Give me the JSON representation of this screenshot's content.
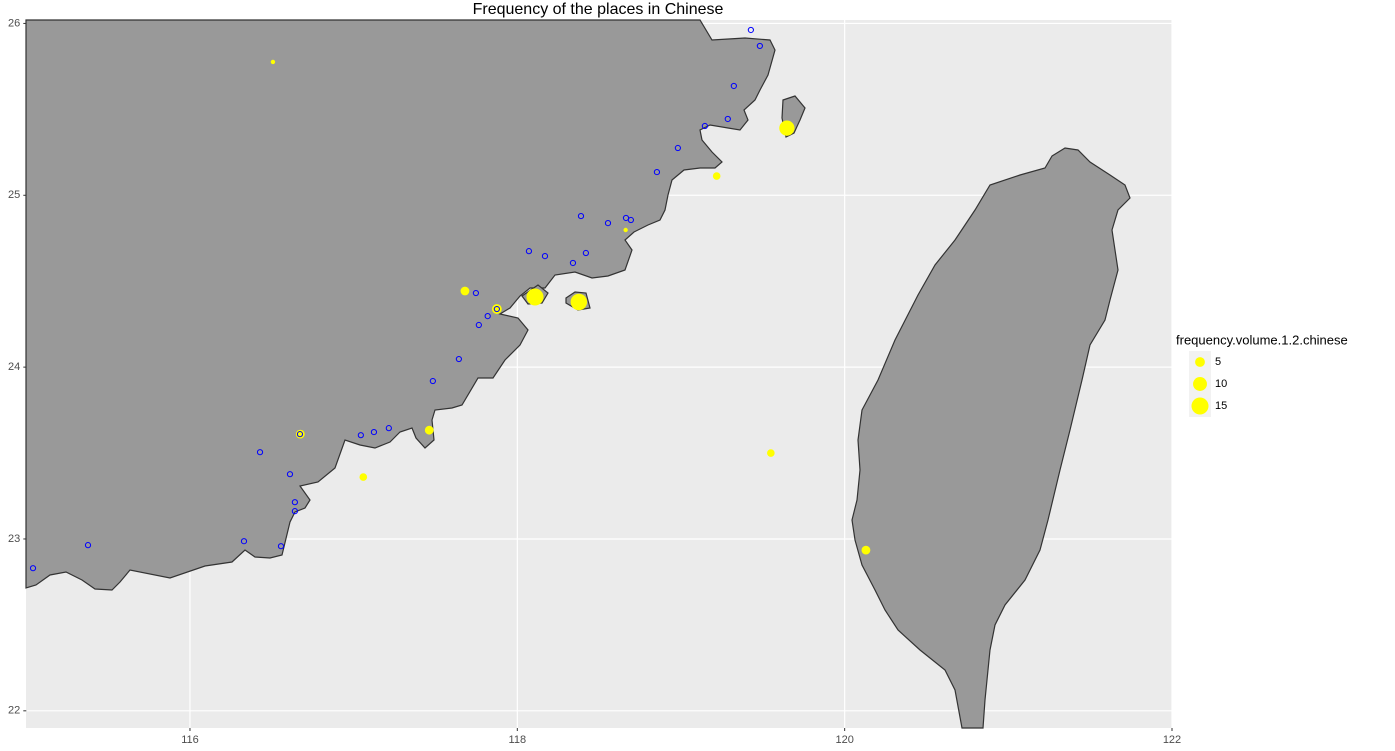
{
  "chart_data": {
    "type": "scatter",
    "title": "Frequency of the places in Chinese",
    "xlim": [
      115,
      122
    ],
    "ylim": [
      21.9,
      26.02
    ],
    "xticks": [
      116,
      118,
      120,
      122
    ],
    "yticks": [
      22,
      23,
      24,
      25,
      26
    ],
    "grid": true,
    "size_legend": {
      "title": "frequency.volume.1.2.chinese",
      "values": [
        5,
        10,
        15
      ],
      "color": "#ffff00"
    },
    "series": [
      {
        "color": "#ffff00",
        "x": [
          116.507,
          119.647,
          119.218,
          118.662,
          117.68,
          118.108,
          118.376,
          117.875,
          117.462,
          116.674,
          117.059,
          119.549,
          120.13
        ],
        "y": [
          25.776,
          25.391,
          25.112,
          24.798,
          24.443,
          24.408,
          24.379,
          24.338,
          23.633,
          23.61,
          23.36,
          23.5,
          22.935
        ],
        "size": [
          1,
          12,
          3,
          1,
          4,
          15,
          14,
          5,
          4,
          4,
          3,
          3,
          4
        ]
      },
      {
        "color": "#0000ff",
        "x": [
          119.427,
          119.482,
          119.323,
          119.286,
          119.146,
          118.981,
          118.853,
          118.389,
          118.554,
          118.664,
          118.694,
          118.071,
          118.169,
          118.419,
          118.34,
          117.747,
          117.819,
          117.765,
          117.875,
          117.643,
          117.484,
          117.215,
          117.124,
          117.044,
          116.672,
          116.428,
          116.611,
          116.641,
          116.641,
          116.33,
          116.556,
          115.377,
          115.041
        ],
        "y": [
          25.962,
          25.869,
          25.636,
          25.444,
          25.403,
          25.275,
          25.135,
          24.879,
          24.838,
          24.868,
          24.856,
          24.675,
          24.646,
          24.664,
          24.606,
          24.431,
          24.297,
          24.245,
          24.338,
          24.047,
          23.919,
          23.645,
          23.622,
          23.604,
          23.61,
          23.505,
          23.377,
          23.214,
          23.162,
          22.987,
          22.958,
          22.964,
          22.83
        ]
      }
    ]
  }
}
